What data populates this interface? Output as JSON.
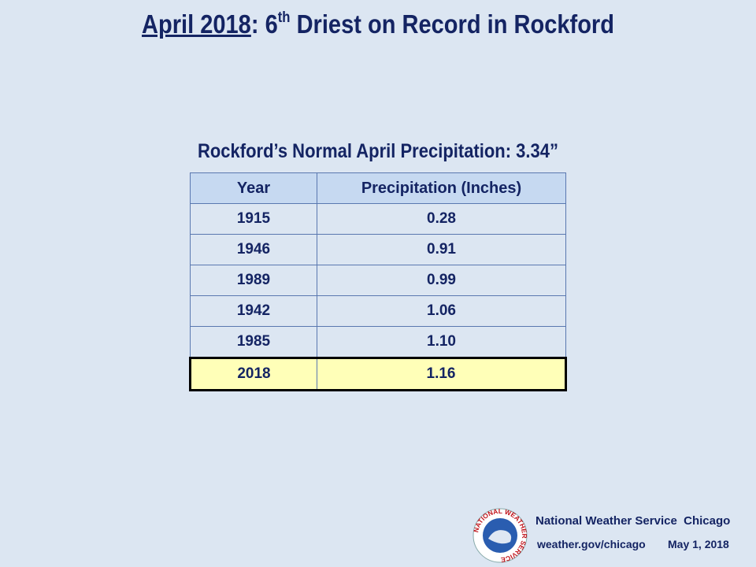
{
  "slide": {
    "title": {
      "main": "April 2018",
      "rest": ": 6",
      "sup": "th",
      "tail": " Driest on Record in Rockford"
    },
    "subtitle": "Rockford’s Normal April Precipitation: 3.34”",
    "table": {
      "header": [
        "Year",
        "Precipitation (Inches)"
      ],
      "rows": [
        [
          "1915",
          "0.28"
        ],
        [
          "1946",
          "0.91"
        ],
        [
          "1989",
          "0.99"
        ],
        [
          "1942",
          "1.06"
        ],
        [
          "1985",
          "1.10"
        ],
        [
          "2018",
          "1.16"
        ]
      ],
      "highlight_row": 5
    },
    "footer": {
      "logo_text": "NATIONAL WEATHER SERVICE",
      "org": "National Weather Service  Chicago",
      "url": "weather.gov/chicago",
      "date": "May 1, 2018"
    }
  }
}
